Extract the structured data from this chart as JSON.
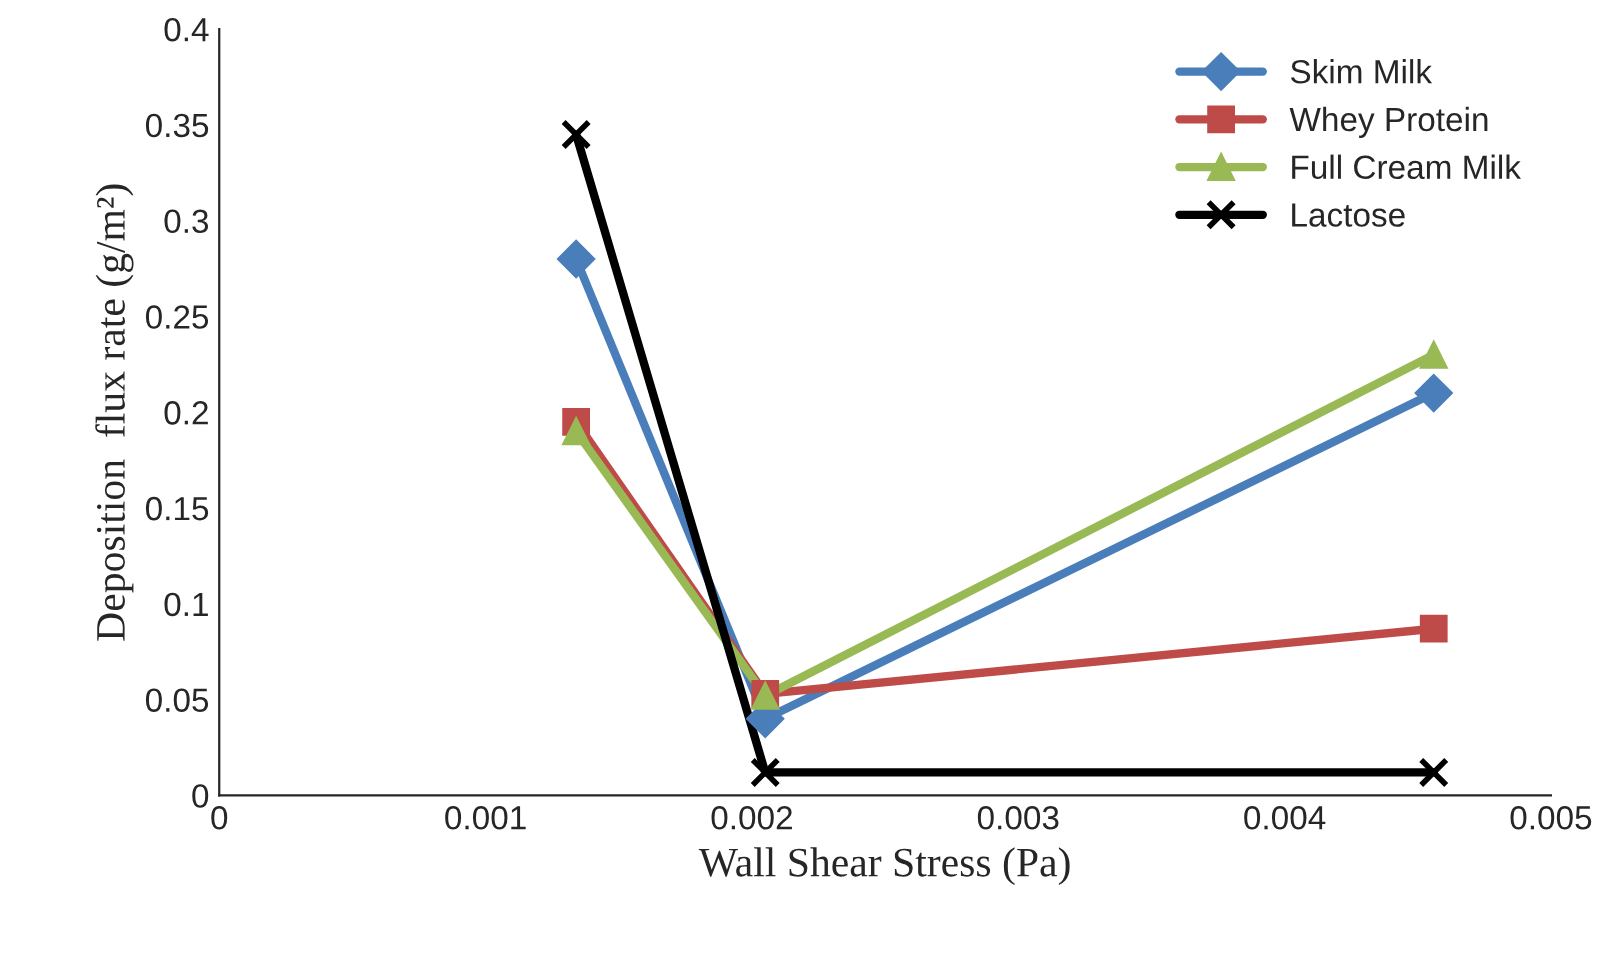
{
  "chart_data": {
    "type": "line",
    "xlabel": "Wall Shear Stress (Pa)",
    "ylabel": "Deposition  flux rate (g/m²)",
    "x": [
      0.00134,
      0.00205,
      0.00456
    ],
    "series": [
      {
        "name": "Skim Milk",
        "color": "#4a7ebb",
        "marker": "diamond",
        "values": [
          0.28,
          0.04,
          0.21
        ]
      },
      {
        "name": "Whey Protein",
        "color": "#be4b48",
        "marker": "square",
        "values": [
          0.195,
          0.053,
          0.087
        ]
      },
      {
        "name": "Full Cream Milk",
        "color": "#98b954",
        "marker": "triangle",
        "values": [
          0.19,
          0.052,
          0.23
        ]
      },
      {
        "name": "Lactose",
        "color": "#000000",
        "marker": "cross",
        "values": [
          0.345,
          0.012,
          0.012
        ]
      }
    ],
    "xlim": [
      0,
      0.005
    ],
    "xticks": [
      0,
      0.001,
      0.002,
      0.003,
      0.004,
      0.005
    ],
    "ylim": [
      0,
      0.4
    ],
    "yticks": [
      0,
      0.05,
      0.1,
      0.15,
      0.2,
      0.25,
      0.3,
      0.35,
      0.4
    ],
    "grid": false,
    "legend": "top right",
    "line_style": "solid"
  }
}
